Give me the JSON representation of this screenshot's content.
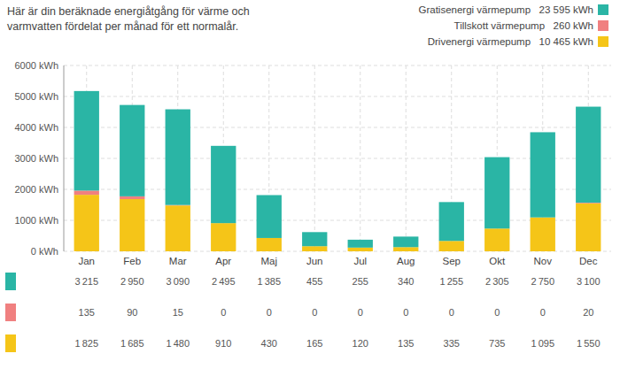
{
  "chart_data": {
    "type": "bar",
    "stacked": true,
    "title": "Här är din beräknade energiåtgång för värme och",
    "subtitle": "varmvatten fördelat per månad för ett normalår.",
    "categories": [
      "Jan",
      "Feb",
      "Mar",
      "Apr",
      "Maj",
      "Jun",
      "Jul",
      "Aug",
      "Sep",
      "Okt",
      "Nov",
      "Dec"
    ],
    "series": [
      {
        "name": "Drivenergi värmepump   10 465 kWh",
        "color": "#f5c518",
        "values": [
          1825,
          1685,
          1480,
          910,
          430,
          165,
          120,
          135,
          335,
          735,
          1095,
          1550
        ],
        "value_labels": [
          "1 825",
          "1 685",
          "1 480",
          "910",
          "430",
          "165",
          "120",
          "135",
          "335",
          "735",
          "1 095",
          "1 550"
        ]
      },
      {
        "name": "Tillskott värmepump   260 kWh",
        "color": "#f08080",
        "values": [
          135,
          90,
          15,
          0,
          0,
          0,
          0,
          0,
          0,
          0,
          0,
          20
        ],
        "value_labels": [
          "135",
          "90",
          "15",
          "0",
          "0",
          "0",
          "0",
          "0",
          "0",
          "0",
          "0",
          "20"
        ]
      },
      {
        "name": "Gratisenergi värmepump   23 595 kWh",
        "color": "#2ab5a5",
        "values": [
          3215,
          2950,
          3090,
          2495,
          1385,
          455,
          255,
          340,
          1255,
          2305,
          2750,
          3100
        ],
        "value_labels": [
          "3 215",
          "2 950",
          "3 090",
          "2 495",
          "1 385",
          "455",
          "255",
          "340",
          "1 255",
          "2 305",
          "2 750",
          "3 100"
        ]
      }
    ],
    "ylim": [
      0,
      6000
    ],
    "yticks": [
      {
        "value": 0,
        "label": "0 kWh"
      },
      {
        "value": 1000,
        "label": "1000 kWh"
      },
      {
        "value": 2000,
        "label": "2000 kWh"
      },
      {
        "value": 3000,
        "label": "3000 kWh"
      },
      {
        "value": 4000,
        "label": "4000 kWh"
      },
      {
        "value": 5000,
        "label": "5000 kWh"
      },
      {
        "value": 6000,
        "label": "6000 kWh"
      }
    ],
    "grid": true,
    "legend": "top-right",
    "data_labels": true
  }
}
